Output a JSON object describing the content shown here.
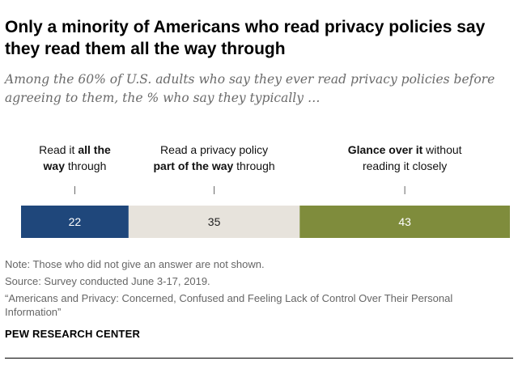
{
  "header": {
    "title": "Only a minority of Americans who read privacy policies say they read them all the way through",
    "subtitle": "Among the 60% of U.S. adults who say they ever read privacy policies before agreeing to them, the % who say they typically …"
  },
  "chart_data": {
    "type": "bar",
    "orientation": "horizontal-stacked",
    "title": "",
    "xlabel": "",
    "ylabel": "",
    "xlim": [
      0,
      100
    ],
    "segments": [
      {
        "category": "Read it all the way through",
        "label_lines": [
          [
            {
              "text": "Read it ",
              "bold": false
            },
            {
              "text": "all the",
              "bold": true
            }
          ],
          [
            {
              "text": "way",
              "bold": true
            },
            {
              "text": " through",
              "bold": false
            }
          ]
        ],
        "value": 22,
        "value_label": "22",
        "color": "#1f477b",
        "value_text_color": "#ffffff"
      },
      {
        "category": "Read a privacy policy part of the way through",
        "label_lines": [
          [
            {
              "text": "Read a privacy policy",
              "bold": false
            }
          ],
          [
            {
              "text": "part of the way",
              "bold": true
            },
            {
              "text": " through",
              "bold": false
            }
          ]
        ],
        "value": 35,
        "value_label": "35",
        "color": "#e7e3dc",
        "value_text_color": "#222222"
      },
      {
        "category": "Glance over it without reading it closely",
        "label_lines": [
          [
            {
              "text": "Glance over it",
              "bold": true
            },
            {
              "text": " without",
              "bold": false
            }
          ],
          [
            {
              "text": "reading it closely",
              "bold": false
            }
          ]
        ],
        "value": 43,
        "value_label": "43",
        "color": "#7f8c3c",
        "value_text_color": "#ffffff"
      }
    ]
  },
  "footer": {
    "note": "Note: Those who did not give an answer are not shown.",
    "source": "Source: Survey conducted June 3-17, 2019.",
    "citation": "“Americans and Privacy: Concerned, Confused and Feeling Lack of Control Over Their Personal Information”",
    "organization": "PEW RESEARCH CENTER"
  }
}
